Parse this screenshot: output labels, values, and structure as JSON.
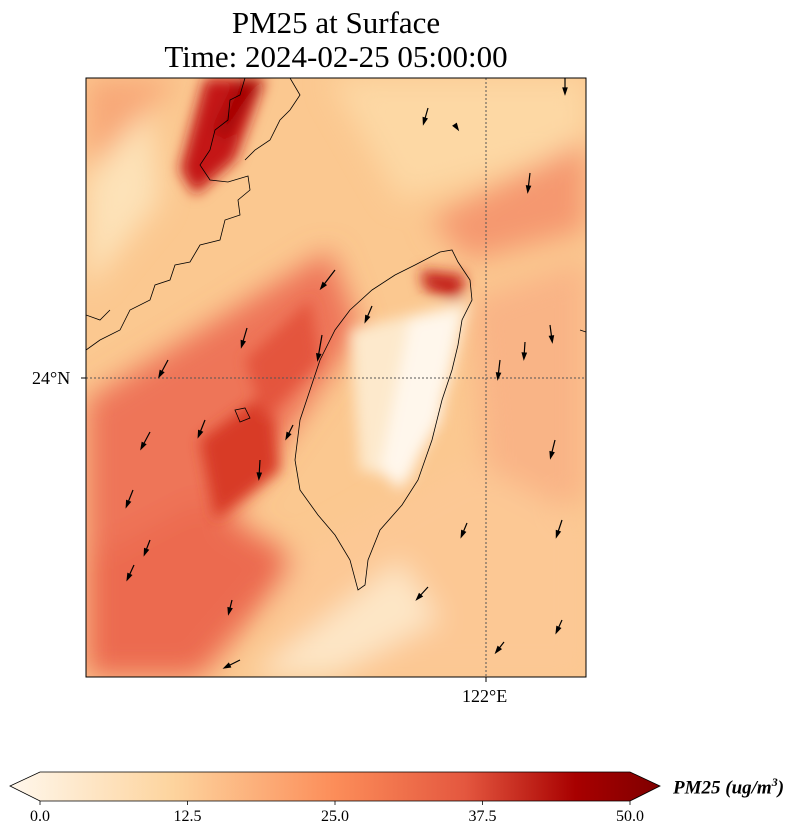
{
  "title": {
    "line1": "PM25 at Surface",
    "line2": "Time: 2024-02-25 05:00:00"
  },
  "axes": {
    "lat_label": "24°N",
    "lon_label": "122°E"
  },
  "colorbar": {
    "label": "PM25 (ug/m",
    "label_sup": "3",
    "label_close": ")",
    "ticks": [
      "0.0",
      "12.5",
      "25.0",
      "37.5",
      "50.0"
    ],
    "range": [
      0,
      50
    ],
    "colormap": "OrRd",
    "extend": "both",
    "colors": [
      "#fff7ec",
      "#fdd49e",
      "#fc8d59",
      "#d7301f",
      "#a50000",
      "#7f0000"
    ]
  },
  "chart_data": {
    "type": "heatmap",
    "title": "PM25 at Surface / Time: 2024-02-25 05:00:00",
    "variable": "PM25",
    "units": "ug/m3",
    "value_range": [
      0,
      50
    ],
    "gridlines": {
      "lat": [
        "24°N"
      ],
      "lon": [
        "122°E"
      ]
    },
    "features": [
      "coastlines",
      "wind vectors"
    ]
  }
}
